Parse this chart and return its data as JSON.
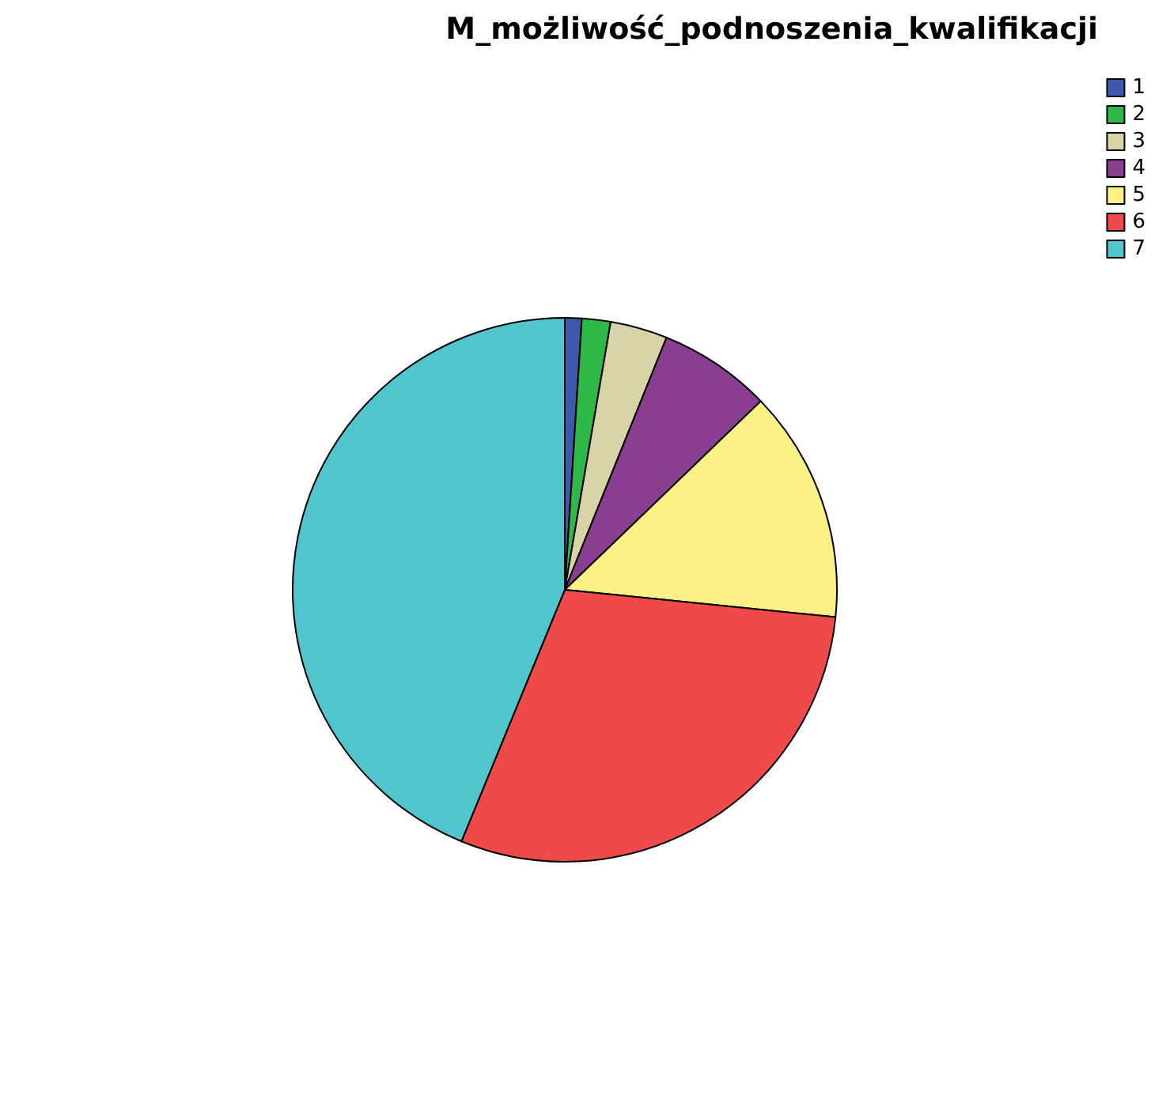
{
  "chart_data": {
    "type": "pie",
    "title": "M_możliwość_podnoszenia_kwalifikacji",
    "categories": [
      "1",
      "2",
      "3",
      "4",
      "5",
      "6",
      "7"
    ],
    "values": [
      1.0,
      1.7,
      3.4,
      6.7,
      13.8,
      29.6,
      43.8
    ],
    "colors": [
      "#3e58ac",
      "#2eb848",
      "#d8d4a8",
      "#8a3e8f",
      "#fbf186",
      "#ef4a4a",
      "#51c5ce"
    ],
    "legend": "top right"
  }
}
